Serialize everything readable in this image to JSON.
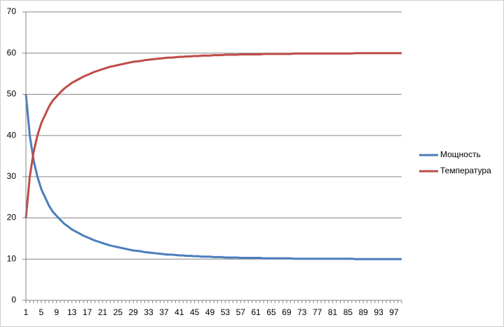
{
  "chart_data": {
    "type": "line",
    "categories": [
      1,
      null,
      null,
      null,
      5,
      null,
      null,
      null,
      9,
      null,
      null,
      null,
      13,
      null,
      null,
      null,
      17,
      null,
      null,
      null,
      21,
      null,
      null,
      null,
      25,
      null,
      null,
      null,
      29,
      null,
      null,
      null,
      33,
      null,
      null,
      null,
      37,
      null,
      null,
      null,
      41,
      null,
      null,
      null,
      45,
      null,
      null,
      null,
      49,
      null,
      null,
      null,
      53,
      null,
      null,
      null,
      57,
      null,
      null,
      null,
      61,
      null,
      null,
      null,
      65,
      null,
      null,
      null,
      69,
      null,
      null,
      null,
      73,
      null,
      null,
      null,
      77,
      null,
      null,
      null,
      81,
      null,
      null,
      null,
      85,
      null,
      null,
      null,
      89,
      null,
      null,
      null,
      93,
      null,
      null,
      null,
      97,
      null,
      null
    ],
    "series": [
      {
        "name": "Мощность",
        "color": "#4a7ebb",
        "values": [
          50,
          40,
          34,
          30,
          27,
          25,
          23,
          21.5,
          20.5,
          19.5,
          18.6,
          17.9,
          17.2,
          16.7,
          16.2,
          15.7,
          15.3,
          14.9,
          14.5,
          14.2,
          13.9,
          13.6,
          13.3,
          13.1,
          12.9,
          12.7,
          12.5,
          12.3,
          12.1,
          12.0,
          11.9,
          11.7,
          11.6,
          11.5,
          11.4,
          11.3,
          11.2,
          11.1,
          11.1,
          11.0,
          10.9,
          10.9,
          10.8,
          10.8,
          10.7,
          10.7,
          10.6,
          10.6,
          10.6,
          10.5,
          10.5,
          10.5,
          10.4,
          10.4,
          10.4,
          10.4,
          10.3,
          10.3,
          10.3,
          10.3,
          10.3,
          10.3,
          10.2,
          10.2,
          10.2,
          10.2,
          10.2,
          10.2,
          10.2,
          10.2,
          10.1,
          10.1,
          10.1,
          10.1,
          10.1,
          10.1,
          10.1,
          10.1,
          10.1,
          10.1,
          10.1,
          10.1,
          10.1,
          10.1,
          10.1,
          10.1,
          10,
          10,
          10,
          10,
          10,
          10,
          10,
          10,
          10,
          10,
          10,
          10,
          10
        ]
      },
      {
        "name": "Температура",
        "color": "#be4b48",
        "values": [
          20,
          30,
          36,
          40,
          43,
          45,
          47,
          48.5,
          49.5,
          50.5,
          51.4,
          52.1,
          52.8,
          53.3,
          53.8,
          54.3,
          54.7,
          55.1,
          55.5,
          55.8,
          56.1,
          56.4,
          56.7,
          56.9,
          57.1,
          57.3,
          57.5,
          57.7,
          57.9,
          58.0,
          58.1,
          58.3,
          58.4,
          58.5,
          58.6,
          58.7,
          58.8,
          58.9,
          58.9,
          59.0,
          59.1,
          59.1,
          59.2,
          59.2,
          59.3,
          59.3,
          59.4,
          59.4,
          59.4,
          59.5,
          59.5,
          59.5,
          59.6,
          59.6,
          59.6,
          59.6,
          59.7,
          59.7,
          59.7,
          59.7,
          59.7,
          59.7,
          59.8,
          59.8,
          59.8,
          59.8,
          59.8,
          59.8,
          59.8,
          59.8,
          59.9,
          59.9,
          59.9,
          59.9,
          59.9,
          59.9,
          59.9,
          59.9,
          59.9,
          59.9,
          59.9,
          59.9,
          59.9,
          59.9,
          59.9,
          59.9,
          60,
          60,
          60,
          60,
          60,
          60,
          60,
          60,
          60,
          60,
          60,
          60,
          60
        ]
      }
    ],
    "ylim": [
      0,
      70
    ],
    "yticks": [
      0,
      10,
      20,
      30,
      40,
      50,
      60,
      70
    ],
    "grid": true,
    "legend": "right"
  }
}
